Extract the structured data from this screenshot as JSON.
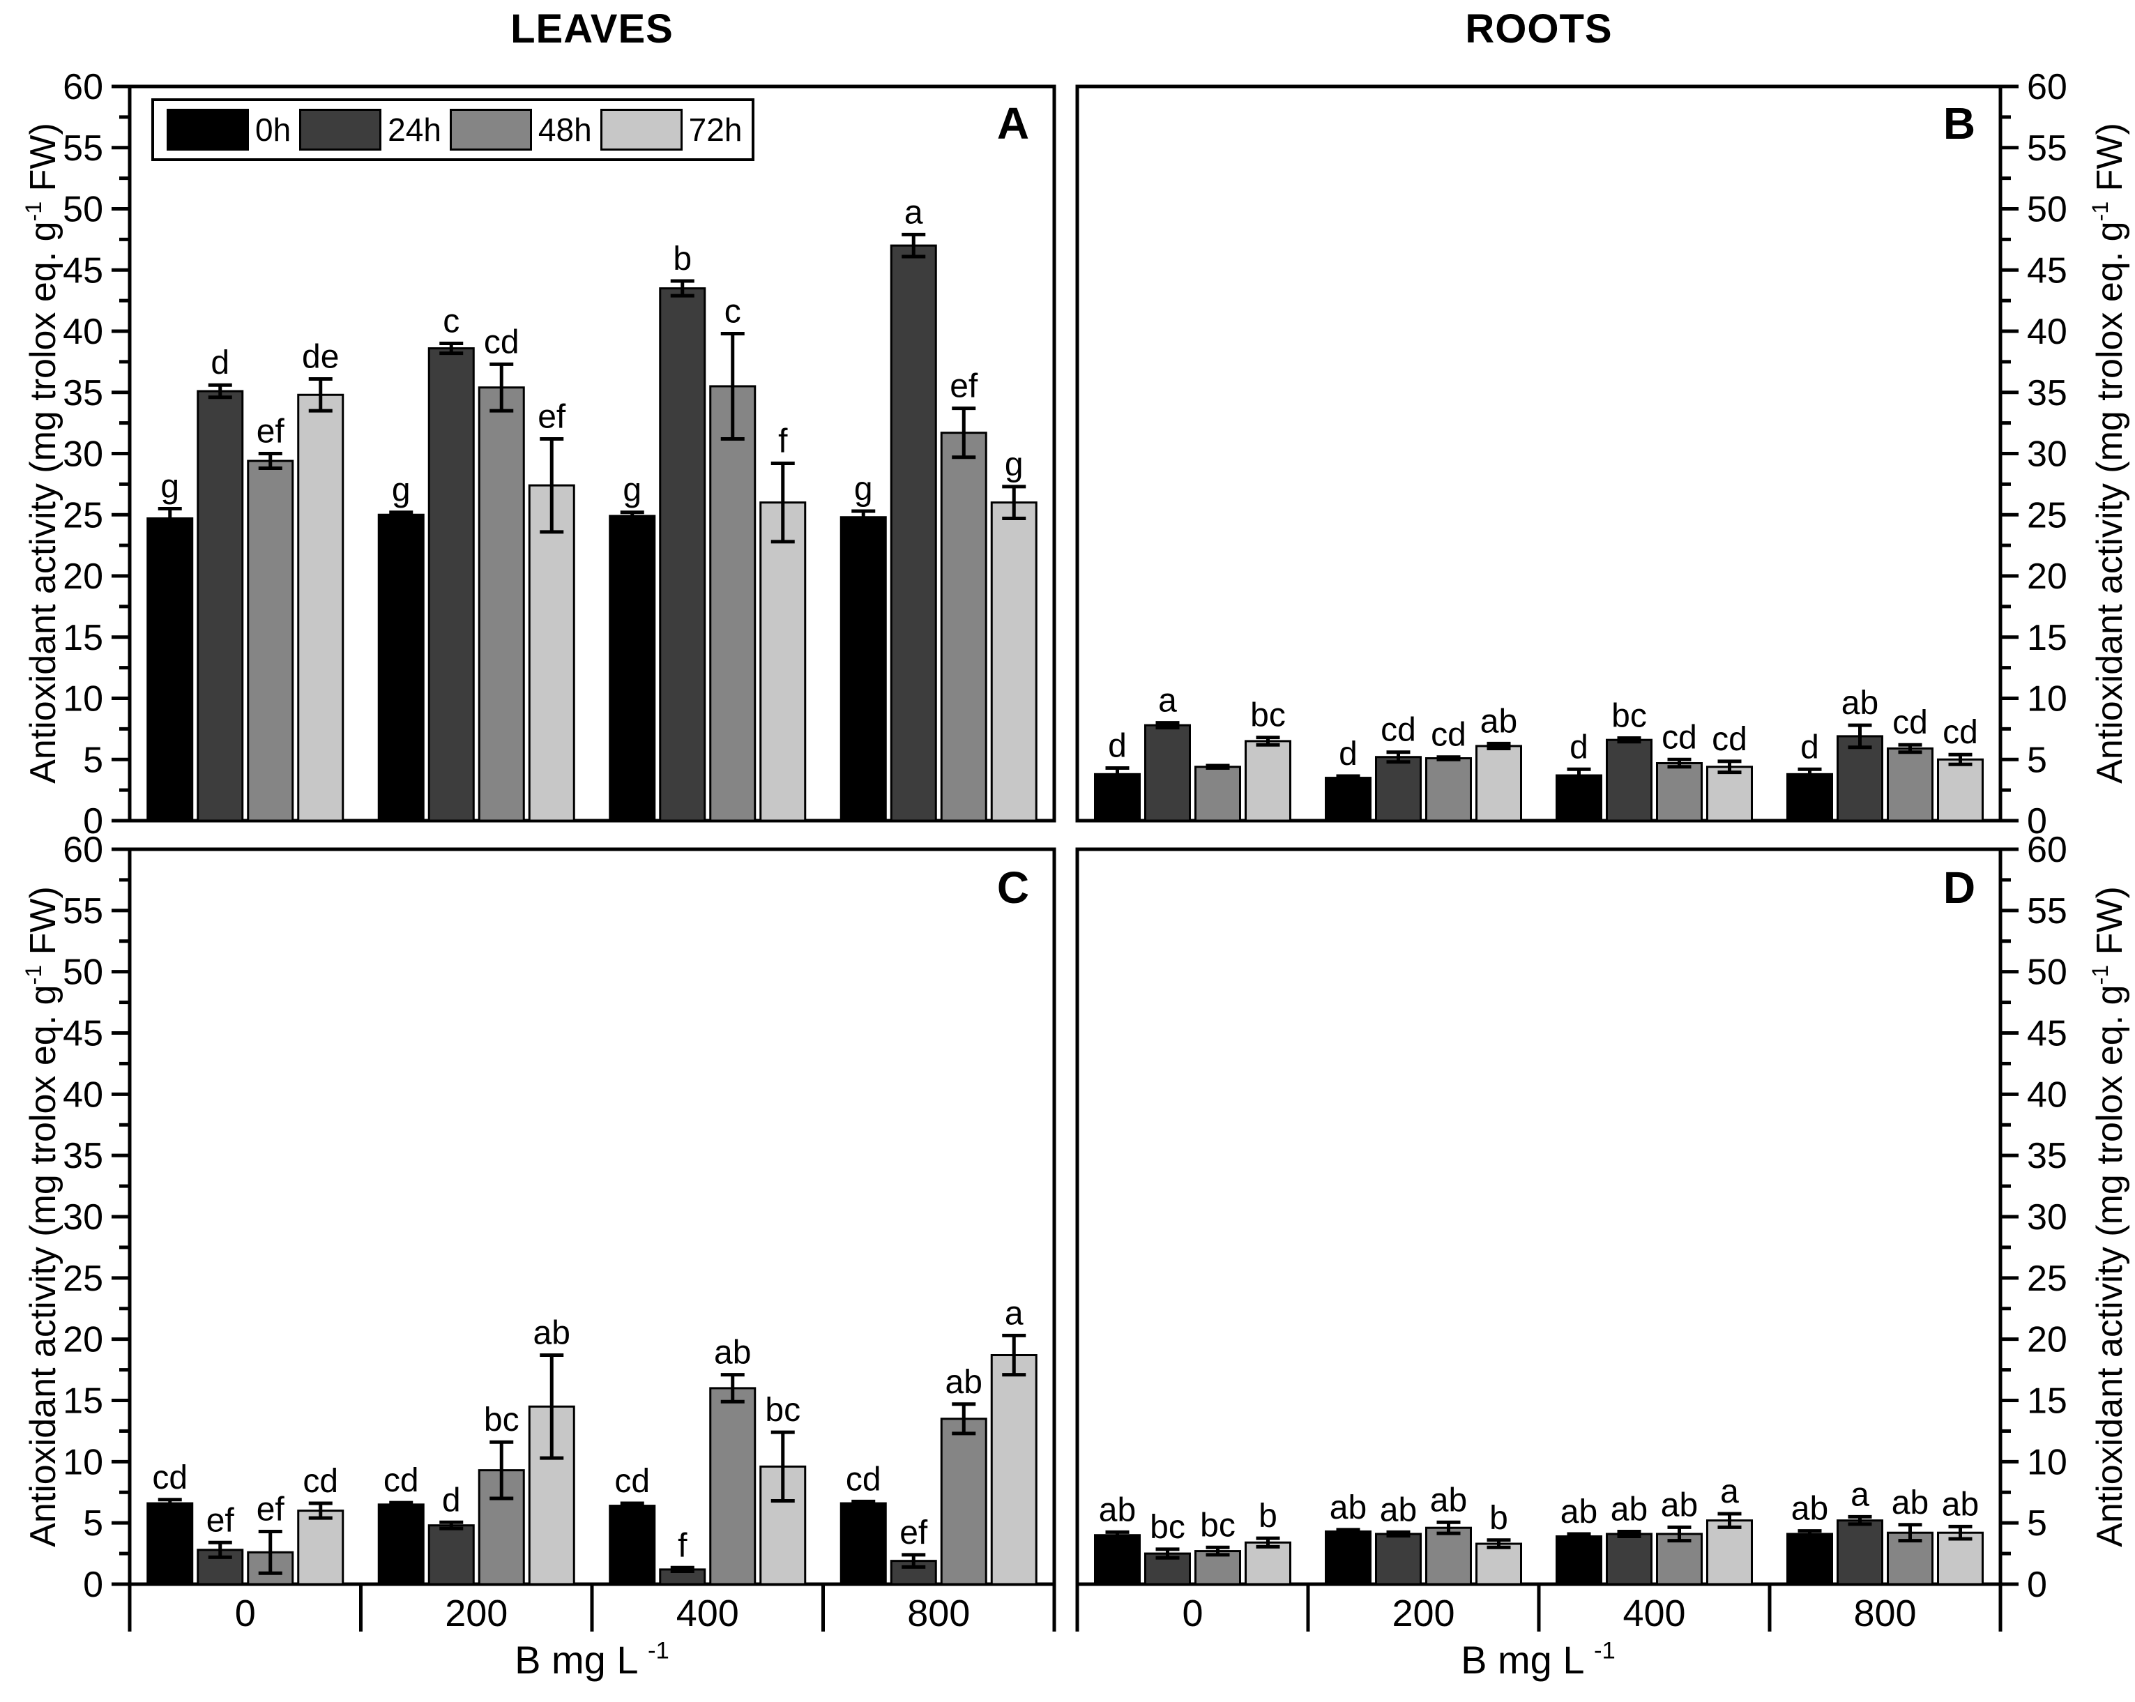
{
  "figure": {
    "left_column_title": "LEAVES",
    "right_column_title": "ROOTS",
    "y_axis_label_pre": "Antioxidant activity (mg trolox eq. g",
    "y_axis_label_sup": "-1",
    "y_axis_label_post": " FW)",
    "x_axis_label_pre": "B mg L",
    "x_axis_label_sup": "-1",
    "legend": {
      "items": [
        {
          "label": "0h",
          "color": "#000000"
        },
        {
          "label": "24h",
          "color": "#3d3d3d"
        },
        {
          "label": "48h",
          "color": "#858585"
        },
        {
          "label": "72h",
          "color": "#c7c7c7"
        }
      ]
    },
    "colors": {
      "axis": "#000000",
      "background": "#ffffff"
    }
  },
  "chart_data": [
    {
      "panel": "A",
      "tissue": "LEAVES",
      "type": "bar",
      "title": "",
      "xlabel": "B mg L-1",
      "ylabel": "Antioxidant activity (mg trolox eq. g-1 FW)",
      "categories": [
        "0",
        "200",
        "400",
        "800"
      ],
      "ylim": [
        0,
        60
      ],
      "ytick_major": 5,
      "ytick_minor": 2.5,
      "series": [
        {
          "name": "0h",
          "values": [
            24.7,
            25.0,
            24.9,
            24.8
          ],
          "errors": [
            0.8,
            0.2,
            0.3,
            0.5
          ],
          "letters": [
            "g",
            "g",
            "g",
            "g"
          ]
        },
        {
          "name": "24h",
          "values": [
            35.1,
            38.6,
            43.5,
            47.0
          ],
          "errors": [
            0.5,
            0.4,
            0.6,
            0.9
          ],
          "letters": [
            "d",
            "c",
            "b",
            "a"
          ]
        },
        {
          "name": "48h",
          "values": [
            29.4,
            35.4,
            35.5,
            31.7
          ],
          "errors": [
            0.6,
            1.9,
            4.3,
            2.0
          ],
          "letters": [
            "ef",
            "cd",
            "c",
            "ef"
          ]
        },
        {
          "name": "72h",
          "values": [
            34.8,
            27.4,
            26.0,
            26.0
          ],
          "errors": [
            1.3,
            3.8,
            3.2,
            1.3
          ],
          "letters": [
            "de",
            "ef",
            "f",
            "g"
          ]
        }
      ]
    },
    {
      "panel": "B",
      "tissue": "ROOTS",
      "type": "bar",
      "title": "",
      "xlabel": "B mg L-1",
      "ylabel": "Antioxidant activity (mg trolox eq. g-1 FW)",
      "categories": [
        "0",
        "200",
        "400",
        "800"
      ],
      "ylim": [
        0,
        60
      ],
      "ytick_major": 5,
      "ytick_minor": 2.5,
      "series": [
        {
          "name": "0h",
          "values": [
            3.8,
            3.5,
            3.7,
            3.8
          ],
          "errors": [
            0.5,
            0.15,
            0.5,
            0.4
          ],
          "letters": [
            "d",
            "d",
            "d",
            "d"
          ]
        },
        {
          "name": "24h",
          "values": [
            7.8,
            5.2,
            6.6,
            6.9
          ],
          "errors": [
            0.2,
            0.4,
            0.15,
            0.9
          ],
          "letters": [
            "a",
            "cd",
            "bc",
            "ab"
          ]
        },
        {
          "name": "48h",
          "values": [
            4.4,
            5.1,
            4.7,
            5.9
          ],
          "errors": [
            0.1,
            0.1,
            0.3,
            0.3
          ],
          "letters": [
            "",
            "cd",
            "cd",
            "cd"
          ]
        },
        {
          "name": "72h",
          "values": [
            6.5,
            6.1,
            4.4,
            5.0
          ],
          "errors": [
            0.3,
            0.2,
            0.45,
            0.4
          ],
          "letters": [
            "bc",
            "ab",
            "cd",
            "cd"
          ]
        }
      ]
    },
    {
      "panel": "C",
      "tissue": "LEAVES",
      "type": "bar",
      "title": "",
      "xlabel": "B mg L-1",
      "ylabel": "Antioxidant activity (mg trolox eq. g-1 FW)",
      "categories": [
        "0",
        "200",
        "400",
        "800"
      ],
      "ylim": [
        0,
        60
      ],
      "ytick_major": 5,
      "ytick_minor": 2.5,
      "series": [
        {
          "name": "0h",
          "values": [
            6.6,
            6.5,
            6.4,
            6.6
          ],
          "errors": [
            0.3,
            0.15,
            0.2,
            0.15
          ],
          "letters": [
            "cd",
            "cd",
            "cd",
            "cd"
          ]
        },
        {
          "name": "24h",
          "values": [
            2.8,
            4.8,
            1.2,
            1.9
          ],
          "errors": [
            0.6,
            0.25,
            0.15,
            0.5
          ],
          "letters": [
            "ef",
            "d",
            "f",
            "ef"
          ]
        },
        {
          "name": "48h",
          "values": [
            2.6,
            9.3,
            16.0,
            13.5
          ],
          "errors": [
            1.7,
            2.3,
            1.1,
            1.2
          ],
          "letters": [
            "ef",
            "bc",
            "ab",
            "ab"
          ]
        },
        {
          "name": "72h",
          "values": [
            6.0,
            14.5,
            9.6,
            18.7
          ],
          "errors": [
            0.6,
            4.2,
            2.8,
            1.6
          ],
          "letters": [
            "cd",
            "ab",
            "bc",
            "a"
          ]
        }
      ]
    },
    {
      "panel": "D",
      "tissue": "ROOTS",
      "type": "bar",
      "title": "",
      "xlabel": "B mg L-1",
      "ylabel": "Antioxidant activity (mg trolox eq. g-1 FW)",
      "categories": [
        "0",
        "200",
        "400",
        "800"
      ],
      "ylim": [
        0,
        60
      ],
      "ytick_major": 5,
      "ytick_minor": 2.5,
      "series": [
        {
          "name": "0h",
          "values": [
            4.0,
            4.3,
            3.9,
            4.1
          ],
          "errors": [
            0.25,
            0.15,
            0.2,
            0.25
          ],
          "letters": [
            "ab",
            "ab",
            "ab",
            "ab"
          ]
        },
        {
          "name": "24h",
          "values": [
            2.5,
            4.1,
            4.1,
            5.2
          ],
          "errors": [
            0.35,
            0.15,
            0.2,
            0.3
          ],
          "letters": [
            "bc",
            "ab",
            "ab",
            "a"
          ]
        },
        {
          "name": "48h",
          "values": [
            2.7,
            4.6,
            4.1,
            4.2
          ],
          "errors": [
            0.3,
            0.45,
            0.55,
            0.65
          ],
          "letters": [
            "bc",
            "ab",
            "ab",
            "ab"
          ]
        },
        {
          "name": "72h",
          "values": [
            3.4,
            3.3,
            5.2,
            4.2
          ],
          "errors": [
            0.35,
            0.3,
            0.55,
            0.5
          ],
          "letters": [
            "b",
            "b",
            "a",
            "ab"
          ]
        }
      ]
    }
  ]
}
